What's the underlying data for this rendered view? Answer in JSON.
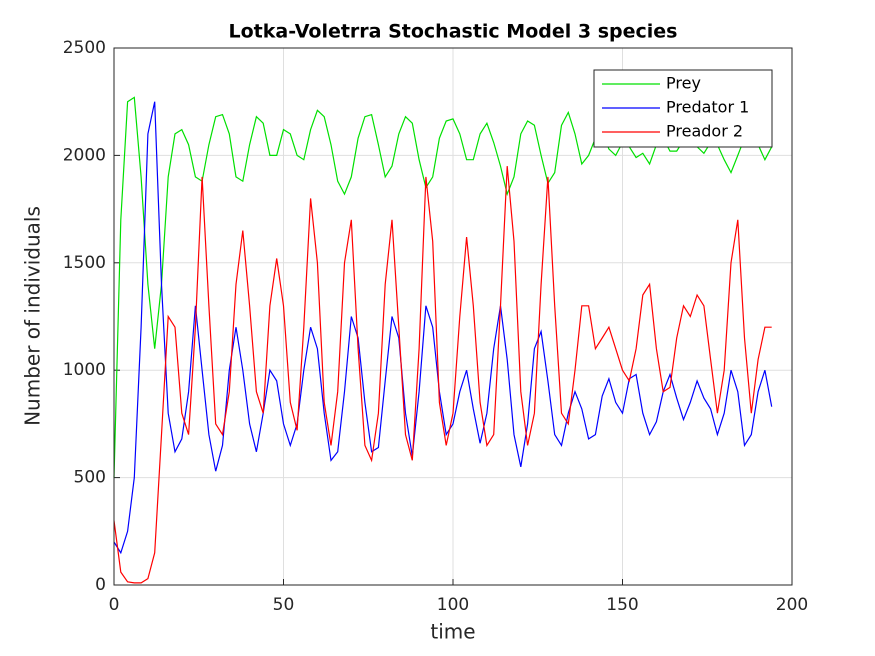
{
  "chart_data": {
    "type": "line",
    "title": "Lotka-Voletrra Stochastic Model 3 species",
    "x_label": "time",
    "y_label": "Number of individuals",
    "x": [
      0,
      2,
      4,
      6,
      8,
      10,
      12,
      14,
      16,
      18,
      20,
      22,
      24,
      26,
      28,
      30,
      32,
      34,
      36,
      38,
      40,
      42,
      44,
      46,
      48,
      50,
      52,
      54,
      56,
      58,
      60,
      62,
      64,
      66,
      68,
      70,
      72,
      74,
      76,
      78,
      80,
      82,
      84,
      86,
      88,
      90,
      92,
      94,
      96,
      98,
      100,
      102,
      104,
      106,
      108,
      110,
      112,
      114,
      116,
      118,
      120,
      122,
      124,
      126,
      128,
      130,
      132,
      134,
      136,
      138,
      140,
      142,
      144,
      146,
      148,
      150,
      152,
      154,
      156,
      158,
      160,
      162,
      164,
      166,
      168,
      170,
      172,
      174,
      176,
      178,
      180,
      182,
      184,
      186,
      188,
      190,
      192,
      194
    ],
    "series": [
      {
        "name": "Prey",
        "color": "#00e000",
        "values": [
          500,
          1700,
          2250,
          2270,
          1900,
          1400,
          1100,
          1400,
          1900,
          2100,
          2120,
          2050,
          1900,
          1880,
          2050,
          2180,
          2190,
          2100,
          1900,
          1880,
          2050,
          2180,
          2150,
          2000,
          2000,
          2120,
          2100,
          2000,
          1980,
          2120,
          2210,
          2180,
          2050,
          1880,
          1820,
          1900,
          2080,
          2180,
          2190,
          2050,
          1900,
          1950,
          2100,
          2180,
          2150,
          1980,
          1850,
          1900,
          2080,
          2160,
          2170,
          2100,
          1980,
          1980,
          2100,
          2150,
          2060,
          1950,
          1820,
          1900,
          2100,
          2160,
          2140,
          2000,
          1870,
          1920,
          2140,
          2200,
          2100,
          1960,
          2000,
          2080,
          2110,
          2030,
          2000,
          2060,
          2040,
          1990,
          2010,
          1960,
          2050,
          2080,
          2020,
          2020,
          2070,
          2090,
          2040,
          2010,
          2060,
          2050,
          1980,
          1920,
          2000,
          2080,
          2100,
          2050,
          1980,
          2040
        ]
      },
      {
        "name": "Predator 1",
        "color": "#0000ff",
        "values": [
          200,
          150,
          250,
          500,
          1200,
          2100,
          2250,
          1400,
          800,
          620,
          680,
          900,
          1300,
          1000,
          700,
          530,
          650,
          1000,
          1200,
          1000,
          750,
          620,
          800,
          1000,
          950,
          750,
          650,
          750,
          1000,
          1200,
          1100,
          800,
          580,
          620,
          900,
          1250,
          1150,
          850,
          620,
          640,
          950,
          1250,
          1150,
          800,
          600,
          900,
          1300,
          1200,
          900,
          700,
          750,
          900,
          1000,
          820,
          660,
          800,
          1100,
          1300,
          1050,
          700,
          550,
          750,
          1100,
          1180,
          950,
          700,
          650,
          800,
          900,
          820,
          680,
          700,
          880,
          960,
          850,
          800,
          960,
          980,
          800,
          700,
          760,
          900,
          980,
          870,
          770,
          850,
          950,
          870,
          820,
          700,
          800,
          1000,
          900,
          650,
          700,
          900,
          1000,
          830
        ]
      },
      {
        "name": "Preador 2",
        "color": "#ff0000",
        "values": [
          300,
          60,
          15,
          10,
          10,
          30,
          150,
          700,
          1250,
          1200,
          800,
          700,
          1200,
          1900,
          1300,
          750,
          700,
          900,
          1400,
          1650,
          1300,
          900,
          800,
          1300,
          1520,
          1300,
          850,
          720,
          1200,
          1800,
          1500,
          850,
          650,
          900,
          1500,
          1700,
          1100,
          650,
          580,
          800,
          1400,
          1700,
          1200,
          700,
          580,
          1100,
          1900,
          1600,
          850,
          650,
          800,
          1250,
          1620,
          1300,
          850,
          650,
          700,
          1300,
          1950,
          1600,
          900,
          650,
          800,
          1400,
          1900,
          1300,
          800,
          750,
          1000,
          1300,
          1300,
          1100,
          1150,
          1200,
          1100,
          1000,
          950,
          1100,
          1350,
          1400,
          1100,
          900,
          920,
          1150,
          1300,
          1250,
          1350,
          1300,
          1050,
          800,
          1000,
          1500,
          1700,
          1150,
          800,
          1050,
          1200,
          1200
        ]
      }
    ],
    "xlim": [
      0,
      200
    ],
    "xticks": [
      0,
      50,
      100,
      150,
      200
    ],
    "ylim": [
      0,
      2500
    ],
    "yticks": [
      0,
      500,
      1000,
      1500,
      2000,
      2500
    ],
    "grid": true,
    "legend": "upper-right"
  }
}
